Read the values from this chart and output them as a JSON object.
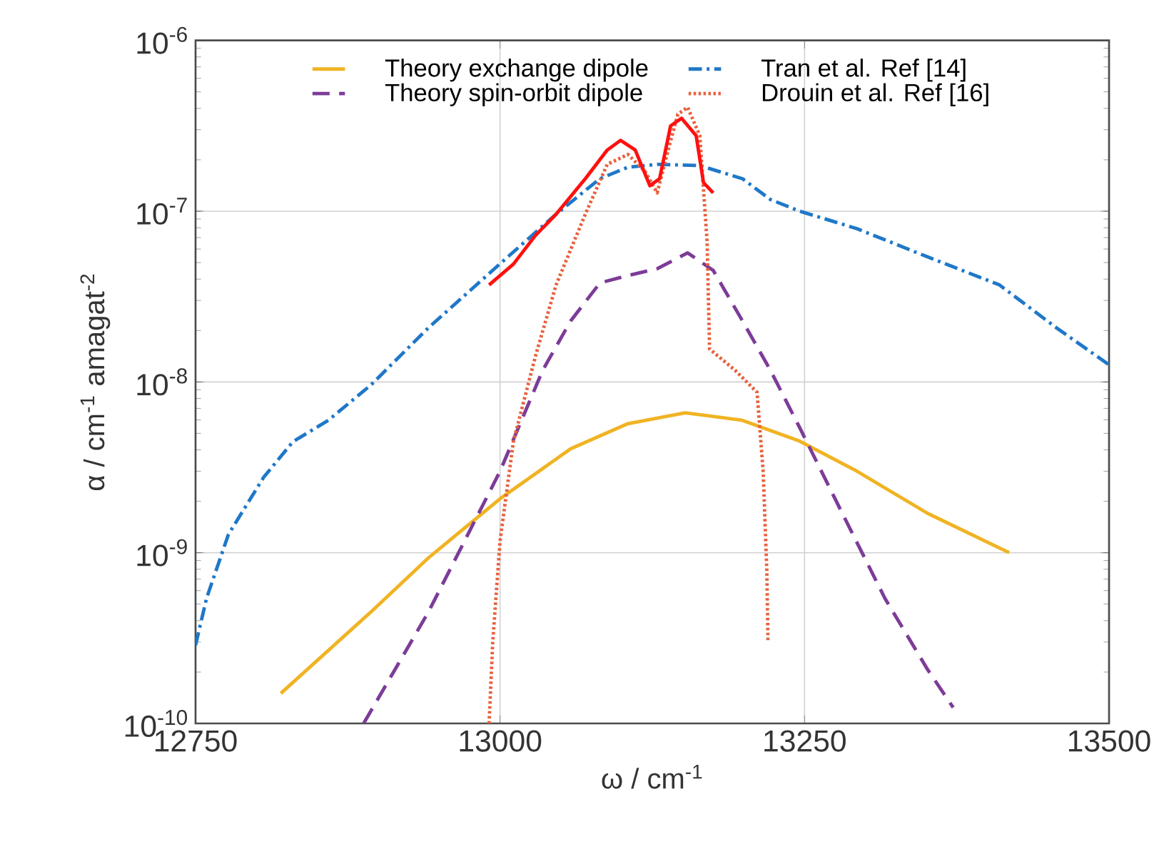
{
  "chart_data": {
    "type": "line",
    "xlabel": "ω / cm$^{-1}$",
    "ylabel": "α / cm$^{-1}$  amagat$^{-2}$",
    "log": "y",
    "grid": true,
    "legend": "top",
    "xlim": [
      12750,
      13500
    ],
    "ylim": [
      1e-10,
      1e-06
    ],
    "xticks": [
      12750,
      13000,
      13250,
      13500
    ],
    "yticks": [
      {
        "value": 1e-10,
        "label": "10$^{-10}$"
      },
      {
        "value": 1e-09,
        "label": "10$^{-9}$"
      },
      {
        "value": 1e-08,
        "label": "10$^{-8}$"
      },
      {
        "value": 1e-07,
        "label": "10$^{-7}$"
      },
      {
        "value": 1e-06,
        "label": "10$^{-6}$"
      }
    ],
    "series": [
      {
        "name": "Theory exchange dipole",
        "color": "#f0b323",
        "line_style": "solid",
        "x": [
          12820,
          12894,
          12941,
          13000,
          13058,
          13105,
          13152,
          13199,
          13246,
          13293,
          13351,
          13418
        ],
        "values": [
          1.5e-10,
          4.5e-10,
          9.3e-10,
          2.07e-09,
          4.06e-09,
          5.7e-09,
          6.6e-09,
          5.96e-09,
          4.5e-09,
          3e-09,
          1.7e-09,
          1e-09
        ]
      },
      {
        "name": "Tran et al. Ref [14]",
        "color": "#1f78c8",
        "line_style": "dashdot",
        "x": [
          12750,
          12759,
          12777,
          12806,
          12830,
          12859,
          12894,
          12941,
          13000,
          13046,
          13082,
          13105,
          13129,
          13164,
          13199,
          13222,
          13246,
          13293,
          13351,
          13410,
          13457,
          13500
        ],
        "values": [
          2.87e-10,
          5.4e-10,
          1.28e-09,
          2.77e-09,
          4.47e-09,
          5.96e-09,
          9.6e-09,
          2.07e-08,
          4.92e-08,
          9.6e-08,
          1.55e-07,
          1.81e-07,
          1.88e-07,
          1.85e-07,
          1.55e-07,
          1.17e-07,
          1e-07,
          7.9e-08,
          5.4e-08,
          3.7e-08,
          2.07e-08,
          1.26e-08
        ]
      },
      {
        "name": "Theory spin-orbit dipole",
        "color": "#7d3c98",
        "line_style": "dashed",
        "x": [
          12888,
          12941,
          13000,
          13035,
          13058,
          13082,
          13105,
          13129,
          13154,
          13175,
          13199,
          13222,
          13246,
          13281,
          13316,
          13351,
          13372
        ],
        "values": [
          1e-10,
          4.47e-10,
          3e-09,
          1.17e-08,
          2.28e-08,
          3.8e-08,
          4.2e-08,
          4.6e-08,
          5.7e-08,
          4.5e-08,
          2.28e-08,
          1.17e-08,
          5.4e-09,
          1.7e-09,
          5.4e-10,
          2.07e-10,
          1.24e-10
        ]
      },
      {
        "name": "Drouin et al. Ref [16]",
        "color": "#e8603c",
        "line_style": "dotted",
        "x": [
          12991,
          12994,
          13000,
          13011,
          13029,
          13046,
          13070,
          13088,
          13105,
          13119,
          13129,
          13138,
          13146,
          13154,
          13164,
          13170,
          13172,
          13193,
          13211,
          13216,
          13219,
          13220
        ],
        "values": [
          1e-10,
          3e-10,
          1.17e-09,
          4.5e-09,
          1.41e-08,
          3.7e-08,
          9.6e-08,
          1.88e-07,
          2.15e-07,
          1.71e-07,
          1.28e-07,
          2.28e-07,
          3.7e-07,
          4.06e-07,
          2.77e-07,
          6.6e-08,
          1.56e-08,
          1.17e-08,
          8.7e-09,
          3e-09,
          7.9e-10,
          3e-10
        ]
      },
      {
        "color": "#ff1010",
        "line_style": "solid",
        "x": [
          12991,
          13011,
          13029,
          13046,
          13070,
          13088,
          13099,
          13111,
          13123,
          13131,
          13140,
          13149,
          13161,
          13167,
          13175
        ],
        "values": [
          3.7e-08,
          4.9e-08,
          7.2e-08,
          9.6e-08,
          1.55e-07,
          2.28e-07,
          2.6e-07,
          2.28e-07,
          1.41e-07,
          1.55e-07,
          3.16e-07,
          3.5e-07,
          2.77e-07,
          1.47e-07,
          1.28e-07
        ]
      }
    ]
  }
}
